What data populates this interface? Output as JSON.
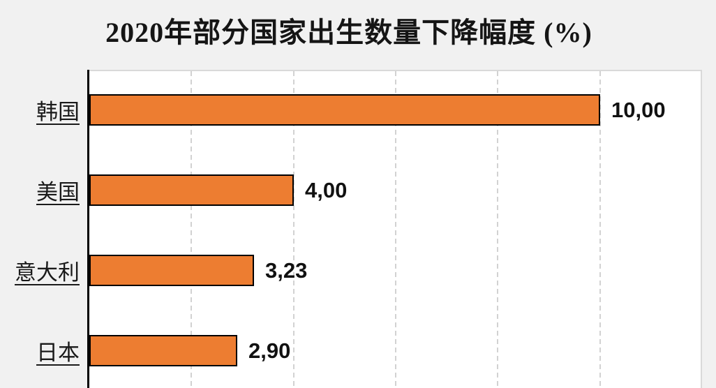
{
  "title": "2020年部分国家出生数量下降幅度 (%)",
  "chart_data": {
    "type": "bar",
    "orientation": "horizontal",
    "title": "2020年部分国家出生数量下降幅度 (%)",
    "categories": [
      "韩国",
      "美国",
      "意大利",
      "日本"
    ],
    "values": [
      10.0,
      4.0,
      3.23,
      2.9
    ],
    "value_labels": [
      "10,00",
      "4,00",
      "3,23",
      "2,90"
    ],
    "xlabel": "",
    "ylabel": "",
    "xlim": [
      0,
      12
    ],
    "gridline_values": [
      2,
      4,
      6,
      8,
      10
    ],
    "grid_style": "dashed-vertical",
    "legend": "none",
    "bar_color": "#ED7D31",
    "bar_border_color": "#000000",
    "axis_color": "#000000",
    "gridline_color": "#D2D2D2",
    "plot_background": "#FFFFFF",
    "page_background": "#F1F1F1",
    "value_label_color": "#111111",
    "category_label_style": "underlined"
  }
}
